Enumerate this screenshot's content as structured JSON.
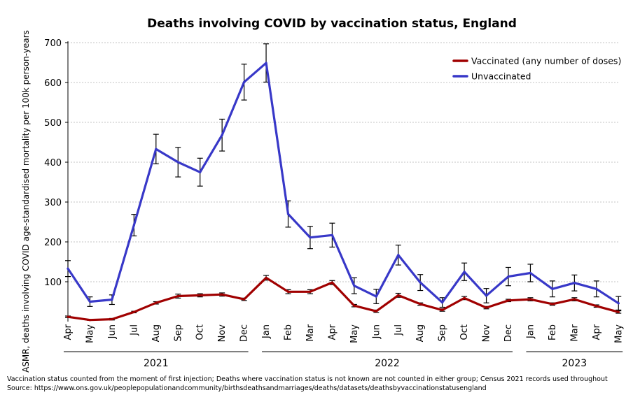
{
  "chart_data": {
    "type": "line",
    "title": "Deaths involving COVID by vaccination status, England",
    "xlabel": "",
    "ylabel": "ASMR, deaths involving COVID age-standardised mortality per 100k person-years",
    "ylim": [
      0,
      700
    ],
    "yticks": [
      100,
      200,
      300,
      400,
      500,
      600,
      700
    ],
    "grid": true,
    "legend_position": "top-right",
    "categories": [
      "Apr",
      "May",
      "Jun",
      "Jul",
      "Aug",
      "Sep",
      "Oct",
      "Nov",
      "Dec",
      "Jan",
      "Feb",
      "Mar",
      "Apr",
      "May",
      "Jun",
      "Jul",
      "Aug",
      "Sep",
      "Oct",
      "Nov",
      "Dec",
      "Jan",
      "Feb",
      "Mar",
      "Apr",
      "May"
    ],
    "year_groups": [
      {
        "label": "2021",
        "start": 0,
        "end": 8
      },
      {
        "label": "2022",
        "start": 9,
        "end": 20
      },
      {
        "label": "2023",
        "start": 21,
        "end": 25
      }
    ],
    "series": [
      {
        "name": "Vaccinated (any number of doses)",
        "color": "#a00000",
        "values": [
          12,
          4,
          6,
          24,
          47,
          64,
          66,
          68,
          56,
          110,
          75,
          75,
          98,
          40,
          26,
          66,
          44,
          29,
          59,
          35,
          53,
          56,
          44,
          56,
          39,
          24
        ],
        "errors": [
          2,
          1,
          2,
          2,
          3,
          5,
          4,
          4,
          3,
          6,
          5,
          5,
          5,
          3,
          3,
          5,
          3,
          3,
          4,
          3,
          3,
          4,
          3,
          4,
          3,
          3
        ]
      },
      {
        "name": "Unvaccinated",
        "color": "#3838c8",
        "values": [
          133,
          50,
          55,
          242,
          433,
          400,
          375,
          468,
          601,
          649,
          270,
          211,
          217,
          90,
          63,
          167,
          98,
          48,
          125,
          65,
          113,
          122,
          82,
          97,
          82,
          46
        ],
        "errors": [
          20,
          12,
          12,
          27,
          37,
          37,
          35,
          40,
          45,
          48,
          33,
          28,
          30,
          20,
          18,
          25,
          20,
          12,
          22,
          18,
          23,
          22,
          20,
          20,
          20,
          17
        ]
      }
    ]
  },
  "footnotes": {
    "note": "Vaccination status counted from the moment of first injection; Deaths where vaccination status is not known are not counted in either group; Census 2021 records used throughout",
    "source": "Source: https://www.ons.gov.uk/peoplepopulationandcommunity/birthsdeathsandmarriages/deaths/datasets/deathsbyvaccinationstatusengland"
  }
}
